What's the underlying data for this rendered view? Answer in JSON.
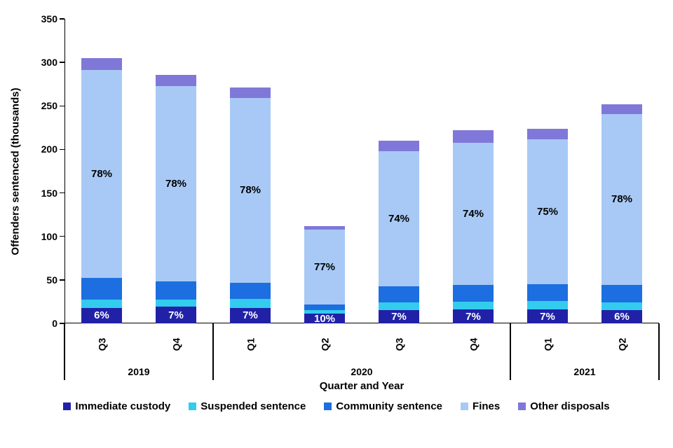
{
  "chart_data": {
    "type": "bar",
    "stacked": true,
    "title": "",
    "ylabel": "Offenders sentenced (thousands)",
    "xlabel": "Quarter and Year",
    "ylim": [
      0,
      350
    ],
    "yticks": [
      0,
      50,
      100,
      150,
      200,
      250,
      300,
      350
    ],
    "grid": false,
    "legend_position": "bottom",
    "categories": [
      "Q3",
      "Q4",
      "Q1",
      "Q2",
      "Q3",
      "Q4",
      "Q1",
      "Q2"
    ],
    "year_groups": [
      {
        "label": "2019",
        "span": 2
      },
      {
        "label": "2020",
        "span": 4
      },
      {
        "label": "2021",
        "span": 2
      }
    ],
    "series": [
      {
        "name": "Immediate custody",
        "color": "#2121A8",
        "values": [
          18,
          19,
          18,
          11,
          15,
          16,
          16,
          15
        ]
      },
      {
        "name": "Suspended sentence",
        "color": "#33CCEE",
        "values": [
          9,
          8,
          10,
          4,
          9,
          9,
          10,
          9
        ]
      },
      {
        "name": "Community sentence",
        "color": "#1D6EE0",
        "values": [
          25,
          21,
          19,
          7,
          19,
          19,
          19,
          20
        ]
      },
      {
        "name": "Fines",
        "color": "#A8C9F5",
        "values": [
          239,
          225,
          212,
          86,
          155,
          164,
          167,
          197
        ]
      },
      {
        "name": "Other disposals",
        "color": "#8078D8",
        "values": [
          14,
          13,
          12,
          4,
          12,
          14,
          12,
          11
        ]
      }
    ],
    "totals": [
      305,
      286,
      271,
      112,
      210,
      222,
      224,
      252
    ],
    "fines_pct_labels": [
      "78%",
      "78%",
      "78%",
      "77%",
      "74%",
      "74%",
      "75%",
      "78%"
    ],
    "custody_pct_labels": [
      "6%",
      "7%",
      "7%",
      "10%",
      "7%",
      "7%",
      "7%",
      "6%"
    ]
  }
}
